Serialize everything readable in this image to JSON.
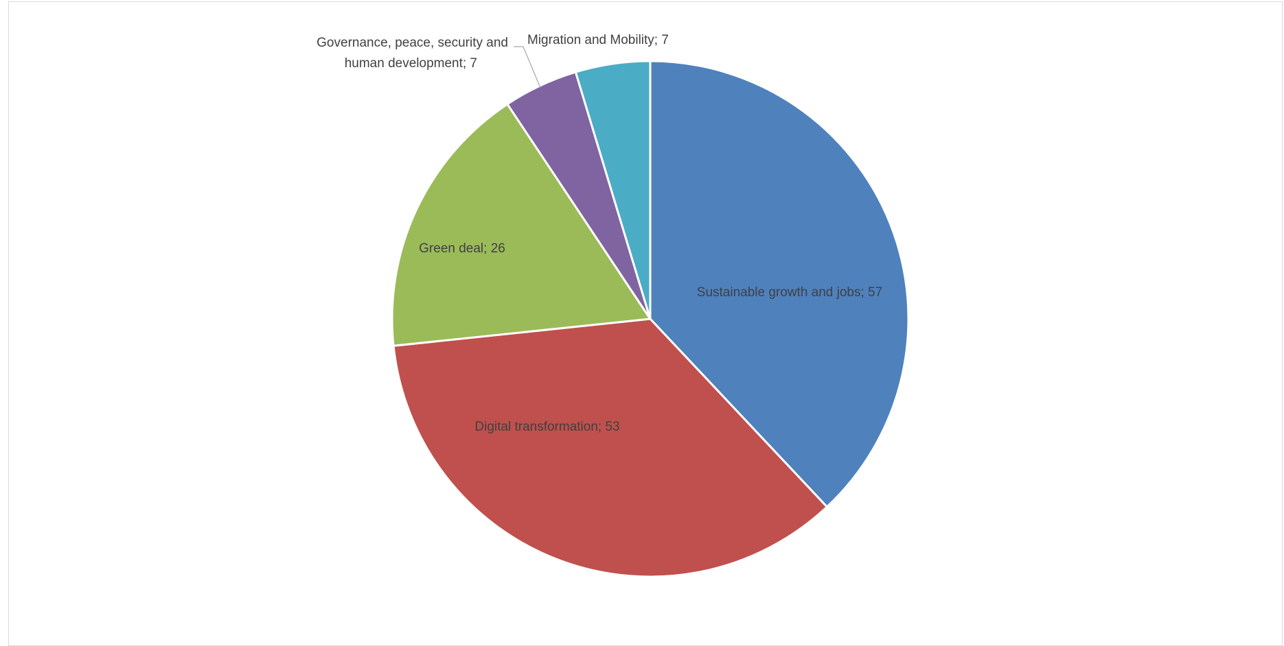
{
  "chart_data": {
    "type": "pie",
    "title": "",
    "slices": [
      {
        "label": "Sustainable growth and jobs; 57",
        "name": "Sustainable growth and jobs",
        "value": 57,
        "color": "#4F81BD"
      },
      {
        "label": "Digital transformation; 53",
        "name": "Digital transformation",
        "value": 53,
        "color": "#C0504D"
      },
      {
        "label": "Green deal; 26",
        "name": "Green deal",
        "value": 26,
        "color": "#9BBB59"
      },
      {
        "label_lines": [
          "Governance, peace, security and",
          "human development; 7"
        ],
        "name": "Governance, peace, security and human development",
        "value": 7,
        "color": "#8064A2"
      },
      {
        "label": "Migration and Mobility; 7",
        "name": "Migration and Mobility",
        "value": 7,
        "color": "#4BACC6"
      }
    ],
    "legend": "none"
  }
}
